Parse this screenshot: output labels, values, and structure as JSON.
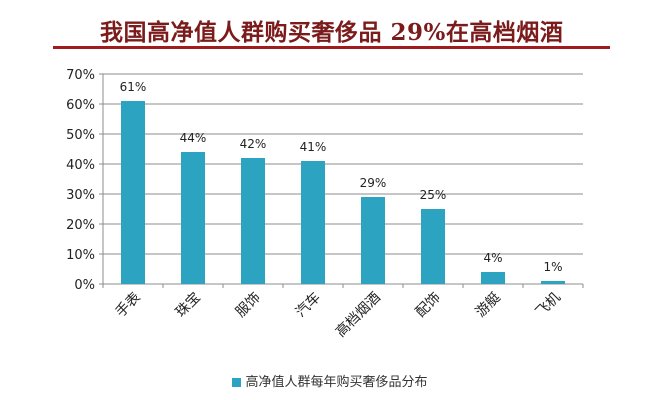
{
  "title": "我国高净值人群购买奢侈品 29%在高档烟酒",
  "chart_data": {
    "type": "bar",
    "title": "我国高净值人群购买奢侈品 29%在高档烟酒",
    "categories": [
      "手表",
      "珠宝",
      "服饰",
      "汽车",
      "高档烟酒",
      "配饰",
      "游艇",
      "飞机"
    ],
    "series": [
      {
        "name": "高净值人群每年购买奢侈品分布",
        "values": [
          61,
          44,
          42,
          41,
          29,
          25,
          4,
          1
        ],
        "color": "#2ba3c1"
      }
    ],
    "data_labels": [
      "61%",
      "44%",
      "42%",
      "41%",
      "29%",
      "25%",
      "4%",
      "1%"
    ],
    "yticks": [
      "0%",
      "10%",
      "20%",
      "30%",
      "40%",
      "50%",
      "60%",
      "70%"
    ],
    "ylim": [
      0,
      70
    ],
    "xlabel": "",
    "ylabel": "",
    "grid": true,
    "legend_position": "bottom"
  }
}
